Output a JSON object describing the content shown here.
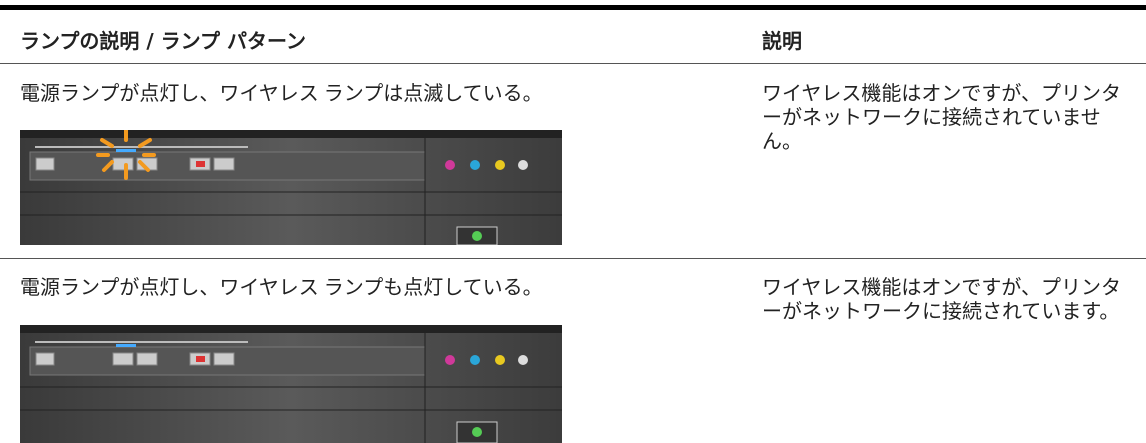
{
  "table": {
    "headers": [
      "ランプの説明 / ランプ パターン",
      "説明"
    ],
    "rows": [
      [
        "電源ランプが点灯し、ワイヤレス ランプは点滅している。",
        "ワイヤレス機能はオンですが、プリンターがネットワークに接続されていません。"
      ],
      [
        "電源ランプが点灯し、ワイヤレス ランプも点灯している。",
        "ワイヤレス機能はオンですが、プリンターがネットワークに接続されています。"
      ]
    ]
  }
}
